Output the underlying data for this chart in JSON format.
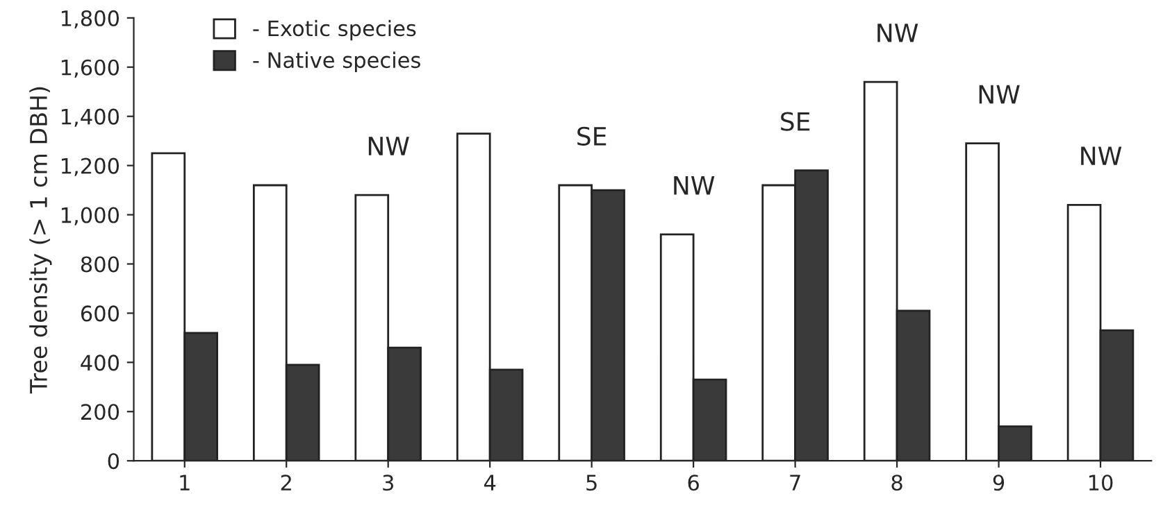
{
  "chart_data": {
    "type": "bar",
    "ylabel": "Tree density (> 1 cm DBH)",
    "categories": [
      "1",
      "2",
      "3",
      "4",
      "5",
      "6",
      "7",
      "8",
      "9",
      "10"
    ],
    "series": [
      {
        "name": "- Exotic species",
        "color": "#ffffff",
        "values": [
          1250,
          1120,
          1080,
          1330,
          1120,
          920,
          1120,
          1540,
          1290,
          1040
        ]
      },
      {
        "name": "- Native species",
        "color": "#3a3a3a",
        "values": [
          520,
          390,
          460,
          370,
          1100,
          330,
          1180,
          610,
          140,
          530
        ]
      }
    ],
    "ylim": [
      0,
      1800
    ],
    "yticks": [
      0,
      200,
      400,
      600,
      800,
      {
        "value": 1000,
        "label": "1,000"
      },
      {
        "value": 1200,
        "label": "1,200"
      },
      {
        "value": 1400,
        "label": "1,400"
      },
      {
        "value": 1600,
        "label": "1,600"
      },
      {
        "value": 1800,
        "label": "1,800"
      }
    ],
    "annotations": [
      {
        "text": "NW",
        "x": "3",
        "y": 1080
      },
      {
        "text": "SE",
        "x": "5",
        "y": 1120
      },
      {
        "text": "NW",
        "x": "6",
        "y": 920
      },
      {
        "text": "SE",
        "x": "7",
        "y": 1180
      },
      {
        "text": "NW",
        "x": "8",
        "y": 1540
      },
      {
        "text": "NW",
        "x": "9",
        "y": 1290
      },
      {
        "text": "NW",
        "x": "10",
        "y": 1040
      }
    ],
    "legend": "top left",
    "grid": false
  }
}
